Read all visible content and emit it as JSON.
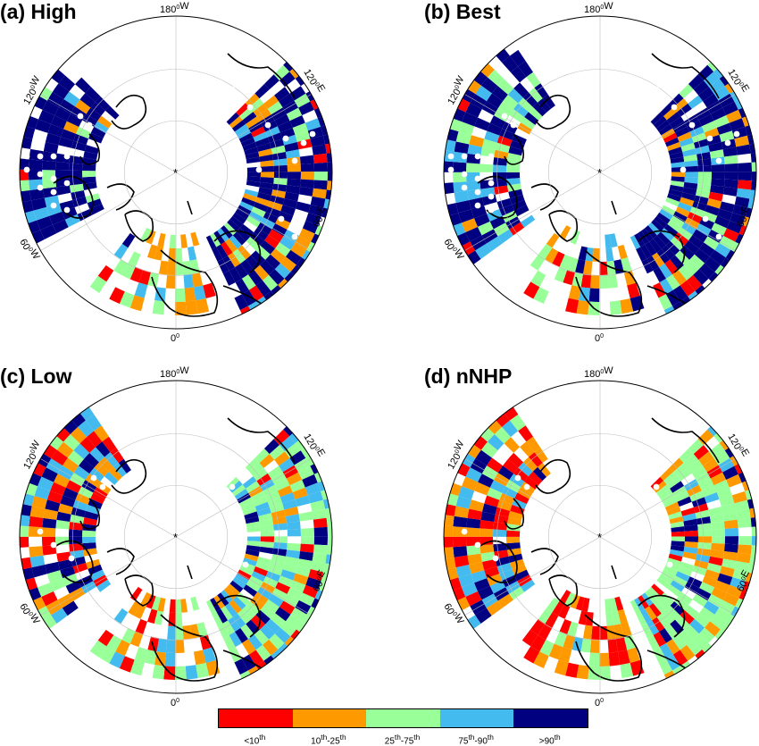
{
  "panels": [
    {
      "id": "a",
      "title": "(a) High",
      "dots": "many-west-and-east"
    },
    {
      "id": "b",
      "title": "(b) Best",
      "dots": "many-west-and-east"
    },
    {
      "id": "c",
      "title": "(c) Low",
      "dots": "few"
    },
    {
      "id": "d",
      "title": "(d) nNHP",
      "dots": "few"
    }
  ],
  "axis_labels": {
    "top": "180",
    "upper_left": "120",
    "upper_right": "120",
    "lower_left": "60",
    "lower_right": "60",
    "bottom": "0",
    "deg": "0",
    "W": "W",
    "E": "E"
  },
  "colorbar": {
    "colors": [
      "#ff0000",
      "#ff9900",
      "#99ff99",
      "#44bbee",
      "#000080"
    ],
    "labels": [
      {
        "base": "<10",
        "sup": "th",
        "mid": "",
        "base2": "",
        "sup2": ""
      },
      {
        "base": "10",
        "sup": "th",
        "mid": "-25",
        "base2": "",
        "sup2": "th"
      },
      {
        "base": "25",
        "sup": "th",
        "mid": "-75",
        "base2": "",
        "sup2": "th"
      },
      {
        "base": "75",
        "sup": "th",
        "mid": "-90",
        "base2": "",
        "sup2": "th"
      },
      {
        "base": ">90",
        "sup": "th",
        "mid": "",
        "base2": "",
        "sup2": ""
      }
    ]
  },
  "pole_marker": "*"
}
